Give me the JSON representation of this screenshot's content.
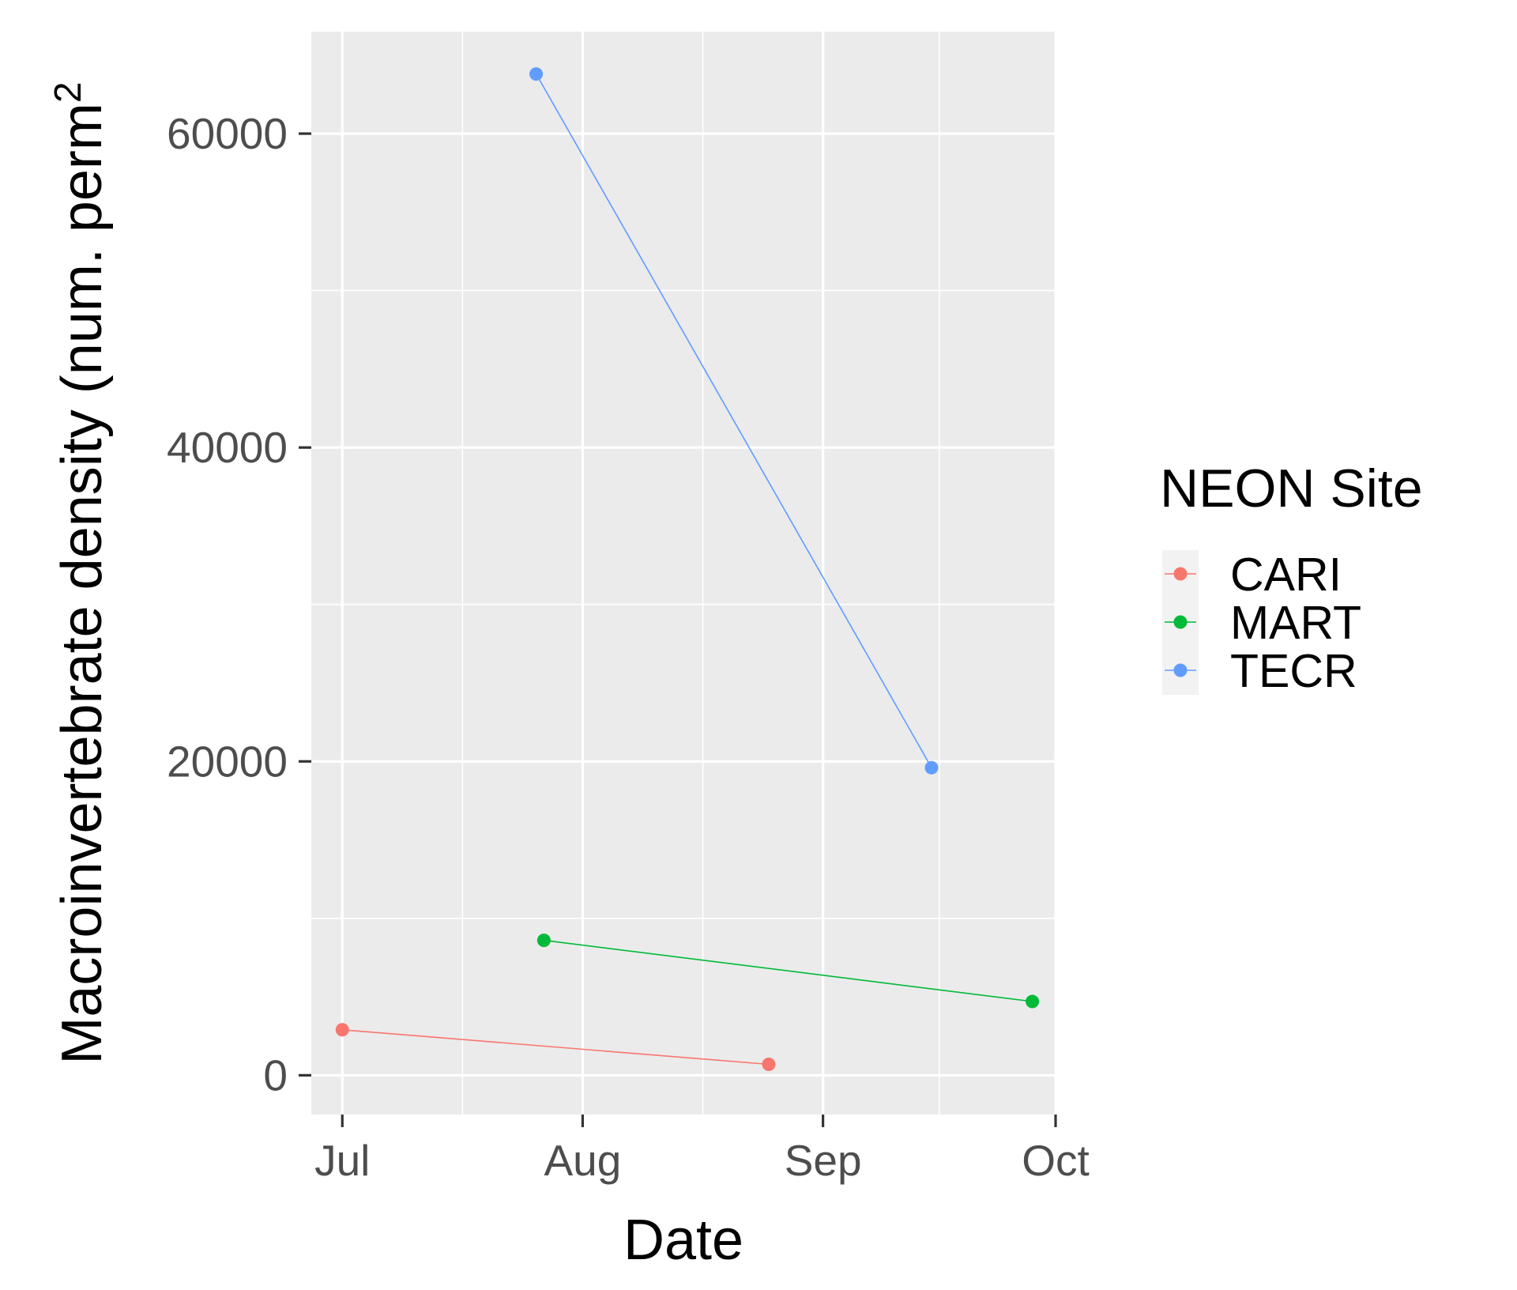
{
  "chart_data": {
    "type": "line",
    "title": "",
    "xlabel": "Date",
    "ylabel": "Macroinvertebrate density (num. perm",
    "ylabel_superscript": "2",
    "x_ticks": [
      "Jul",
      "Aug",
      "Sep",
      "Oct"
    ],
    "x_range": [
      "2018-06-27",
      "2018-10-01"
    ],
    "y_ticks": [
      0,
      20000,
      40000,
      60000
    ],
    "ylim": [
      -2500,
      66500
    ],
    "grid": true,
    "legend": {
      "title": "NEON Site",
      "position": "right",
      "entries": [
        "CARI",
        "MART",
        "TECR"
      ]
    },
    "series": [
      {
        "name": "CARI",
        "color": "#F8766D",
        "points": [
          {
            "x": "2018-07-01",
            "y": 2900
          },
          {
            "x": "2018-08-25",
            "y": 700
          }
        ]
      },
      {
        "name": "MART",
        "color": "#00BA38",
        "points": [
          {
            "x": "2018-07-27",
            "y": 8600
          },
          {
            "x": "2018-09-28",
            "y": 4700
          }
        ]
      },
      {
        "name": "TECR",
        "color": "#619CFF",
        "points": [
          {
            "x": "2018-07-26",
            "y": 63800
          },
          {
            "x": "2018-09-15",
            "y": 19600
          }
        ]
      }
    ]
  }
}
